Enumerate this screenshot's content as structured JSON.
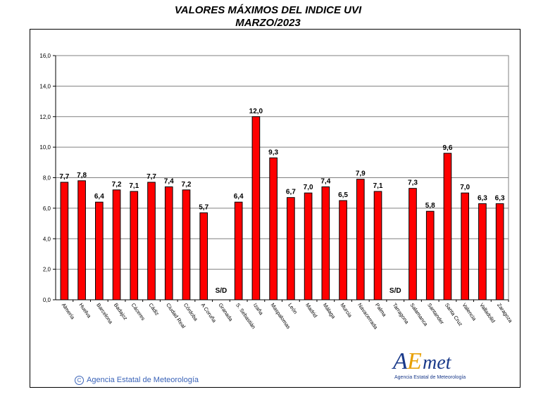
{
  "title": "VALORES MÁXIMOS DEL INDICE UVI",
  "subtitle": "MARZO/2023",
  "credit": "Agencia Estatal de Meteorología",
  "credit_symbol": "C",
  "logo": {
    "text": "AEmet",
    "caption": "Agencia Estatal de Meteorología"
  },
  "colors": {
    "bar": "#ff0000",
    "bar_edge": "#000000",
    "grid": "#808080"
  },
  "chart_data": {
    "type": "bar",
    "title": "VALORES MÁXIMOS DEL INDICE UVI",
    "subtitle": "MARZO/2023",
    "xlabel": "",
    "ylabel": "",
    "ylim": [
      0,
      16
    ],
    "yticks": [
      "0,0",
      "2,0",
      "4,0",
      "6,0",
      "8,0",
      "10,0",
      "12,0",
      "14,0",
      "16,0"
    ],
    "grid": true,
    "missing_label": "S/D",
    "categories": [
      "Almería",
      "Huelva",
      "Barcelona",
      "Badajoz",
      "Cáceres",
      "Cádiz",
      "Ciudad Real",
      "Córdoba",
      "A Coruña",
      "Granada",
      "S. Sebastián",
      "Izaña",
      "Maspalomas",
      "León",
      "Madrid",
      "Málaga",
      "Murcia",
      "Navacerrada",
      "Palma",
      "Tarragona",
      "Salamanca",
      "Santander",
      "Santa Cruz",
      "Valencia",
      "Valladolid",
      "Zaragoza"
    ],
    "values": [
      7.7,
      7.8,
      6.4,
      7.2,
      7.1,
      7.7,
      7.4,
      7.2,
      5.7,
      null,
      6.4,
      12.0,
      9.3,
      6.7,
      7.0,
      7.4,
      6.5,
      7.9,
      7.1,
      null,
      7.3,
      5.8,
      9.6,
      7.0,
      6.3,
      6.3
    ],
    "value_labels": [
      "7,7",
      "7,8",
      "6,4",
      "7,2",
      "7,1",
      "7,7",
      "7,4",
      "7,2",
      "5,7",
      "S/D",
      "6,4",
      "12,0",
      "9,3",
      "6,7",
      "7,0",
      "7,4",
      "6,5",
      "7,9",
      "7,1",
      "S/D",
      "7,3",
      "5,8",
      "9,6",
      "7,0",
      "6,3",
      "6,3"
    ]
  }
}
